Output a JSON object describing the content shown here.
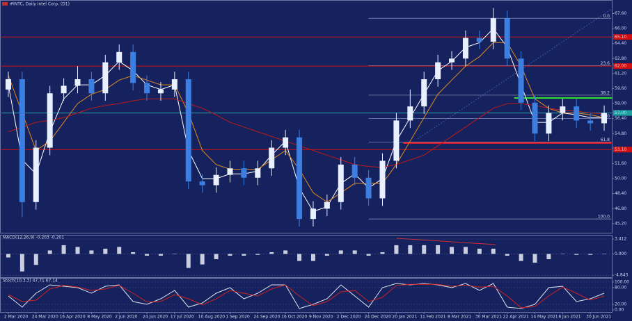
{
  "chart_data": [
    {
      "type": "candlestick",
      "title": "#INTC, Daily Intel Corp. (D1)",
      "categories": [
        "2 Mar 2020",
        null,
        "24 Mar 2020",
        null,
        "16 Apr 2020",
        null,
        "8 May 2020",
        null,
        "2 Jun 2020",
        null,
        "24 Jun 2020",
        null,
        "17 Jul 2020",
        null,
        "10 Aug 2020",
        null,
        "1 Sep 2020",
        null,
        "24 Sep 2020",
        null,
        "16 Oct 2020",
        null,
        "9 Nov 2020",
        null,
        "2 Dec 2020",
        null,
        "24 Dec 2020",
        null,
        "20 Jan 2021",
        null,
        "11 Feb 2021",
        null,
        "8 Mar 2021",
        null,
        "30 Mar 2021",
        null,
        "22 Apr 2021",
        null,
        "14 May 2021",
        null,
        "8 Jun 2021",
        null,
        "30 Jun 2021",
        null
      ],
      "candles": [
        [
          59.5,
          61.4,
          58.7,
          60.6
        ],
        [
          60.6,
          61.4,
          45.9,
          47.5
        ],
        [
          47.5,
          54.1,
          46.7,
          53.3
        ],
        [
          53.3,
          59.9,
          52.5,
          59.1
        ],
        [
          59.1,
          60.7,
          58.3,
          59.9
        ],
        [
          59.9,
          62.0,
          59.1,
          60.6
        ],
        [
          60.6,
          61.4,
          58.3,
          59.1
        ],
        [
          59.1,
          63.2,
          58.3,
          62.4
        ],
        [
          62.4,
          64.3,
          61.6,
          63.5
        ],
        [
          63.5,
          64.3,
          59.4,
          60.2
        ],
        [
          60.2,
          61.0,
          58.3,
          59.1
        ],
        [
          59.1,
          60.3,
          58.3,
          59.5
        ],
        [
          59.5,
          61.4,
          58.7,
          60.6
        ],
        [
          60.6,
          61.4,
          48.9,
          49.7
        ],
        [
          49.7,
          50.5,
          48.5,
          49.3
        ],
        [
          49.3,
          51.2,
          48.5,
          50.4
        ],
        [
          50.4,
          51.9,
          49.6,
          51.1
        ],
        [
          51.1,
          51.9,
          49.3,
          50.1
        ],
        [
          50.1,
          51.9,
          49.3,
          51.1
        ],
        [
          51.1,
          54.1,
          50.3,
          53.3
        ],
        [
          53.3,
          55.2,
          52.5,
          54.4
        ],
        [
          54.4,
          55.2,
          44.9,
          45.7
        ],
        [
          45.7,
          47.6,
          44.9,
          46.8
        ],
        [
          46.8,
          48.3,
          46.0,
          47.5
        ],
        [
          47.5,
          52.3,
          46.7,
          51.5
        ],
        [
          51.5,
          52.3,
          49.3,
          50.1
        ],
        [
          50.1,
          50.9,
          47.1,
          47.9
        ],
        [
          47.9,
          52.7,
          47.1,
          51.9
        ],
        [
          51.9,
          57.0,
          51.1,
          56.2
        ],
        [
          56.2,
          59.5,
          55.4,
          57.7
        ],
        [
          57.7,
          61.4,
          56.9,
          60.6
        ],
        [
          60.6,
          63.2,
          59.8,
          62.4
        ],
        [
          62.4,
          63.6,
          61.6,
          62.8
        ],
        [
          62.8,
          65.8,
          62.0,
          65.0
        ],
        [
          65.0,
          65.8,
          63.8,
          64.6
        ],
        [
          64.6,
          68.2,
          63.8,
          67.1
        ],
        [
          67.1,
          67.9,
          62.0,
          62.8
        ],
        [
          62.8,
          63.6,
          57.3,
          58.1
        ],
        [
          58.1,
          58.9,
          54.0,
          54.8
        ],
        [
          54.8,
          57.8,
          54.0,
          57.0
        ],
        [
          57.0,
          58.5,
          56.2,
          57.7
        ],
        [
          57.7,
          58.5,
          55.4,
          56.2
        ],
        [
          56.2,
          57.0,
          55.1,
          55.9
        ],
        [
          55.9,
          57.8,
          55.1,
          57.0
        ]
      ],
      "up_color": "#e8f0ff",
      "down_color": "#3d7fe0",
      "series": [
        {
          "color": "#ffffff",
          "values": [
            60.0,
            52,
            50.5,
            55,
            58.5,
            60,
            60,
            61,
            62.5,
            61.5,
            60,
            59.5,
            60,
            53,
            50,
            50,
            50.5,
            50.5,
            50.8,
            52.5,
            54,
            49,
            46.5,
            47,
            49.5,
            50.5,
            49,
            50,
            54,
            56.5,
            59,
            61.5,
            62.5,
            64,
            64.5,
            66,
            64,
            60,
            56,
            56,
            57,
            56.8,
            56.5,
            56.5
          ]
        },
        {
          "color": "#e08a1e",
          "values": [
            61,
            57,
            53,
            54,
            56,
            58,
            59,
            59.5,
            60.5,
            61,
            60.5,
            60,
            60,
            57,
            53,
            51.5,
            51,
            51,
            51,
            52,
            53,
            51,
            48.5,
            47.5,
            48.5,
            49.5,
            49.5,
            49.5,
            51.5,
            54,
            56.5,
            59,
            60.5,
            62,
            63,
            64.5,
            64.5,
            62,
            58.5,
            57.5,
            57,
            57,
            56.8,
            56.5
          ]
        },
        {
          "color": "#c01818",
          "values": [
            55,
            55.5,
            56,
            56.2,
            56.5,
            57,
            57.5,
            57.8,
            58,
            58.3,
            58.5,
            58.5,
            58.5,
            58,
            57.5,
            56.8,
            56,
            55.5,
            55,
            54.5,
            54,
            53.5,
            53,
            52.5,
            52,
            51.5,
            51.3,
            51.2,
            51.5,
            52,
            52.5,
            53.5,
            54.5,
            55.5,
            56.5,
            57.5,
            58,
            58,
            57.8,
            57.5,
            57.3,
            57.2,
            57,
            56.9
          ]
        }
      ],
      "hlines": [
        {
          "value": 65.1,
          "label": "65.10",
          "color": "#d01010",
          "start": 0
        },
        {
          "value": 62.0,
          "label": "62.00",
          "color": "#d01010",
          "start": 0
        },
        {
          "value": 53.1,
          "label": "53.10",
          "color": "#d01010",
          "start": 0
        },
        {
          "value": 53.8,
          "color": "#ff2020",
          "start": 29
        },
        {
          "value": 58.6,
          "color": "#30e030",
          "start": 37
        },
        {
          "value": 57.0,
          "label": "57.00",
          "color": "#1fa0a0",
          "start": 0
        }
      ],
      "fib": {
        "start": 26,
        "color": "#9aa3c8",
        "levels": [
          {
            "value": 67.1,
            "label": "0.0"
          },
          {
            "value": 62.05,
            "label": "23.6"
          },
          {
            "value": 58.9,
            "label": "38.2"
          },
          {
            "value": 56.4,
            "label": "50.0"
          },
          {
            "value": 53.9,
            "label": "61.8"
          },
          {
            "value": 45.7,
            "label": "100.0"
          }
        ]
      },
      "ylim": [
        44.6,
        68.6
      ],
      "yticks": [
        {
          "value": 67.6,
          "label": "67.60"
        },
        {
          "value": 66.0,
          "label": "66.00"
        },
        {
          "value": 64.4,
          "label": "64.40"
        },
        {
          "value": 62.8,
          "label": "62.80"
        },
        {
          "value": 61.2,
          "label": "61.20"
        },
        {
          "value": 59.6,
          "label": "59.60"
        },
        {
          "value": 58.0,
          "label": "58.00"
        },
        {
          "value": 56.4,
          "label": "56.40"
        },
        {
          "value": 54.8,
          "label": "54.80"
        },
        {
          "value": 53.2,
          "label": "53.20"
        },
        {
          "value": 51.6,
          "label": "51.60"
        },
        {
          "value": 50.0,
          "label": "50.00"
        },
        {
          "value": 48.4,
          "label": "48.40"
        },
        {
          "value": 46.8,
          "label": "46.80"
        },
        {
          "value": 45.2,
          "label": "45.20"
        }
      ],
      "grid": false
    },
    {
      "type": "bar",
      "title": "MACD(12,26,9) -0.203 -0.201",
      "color": "#c8cde0",
      "values": [
        -0.8,
        -4,
        -2.5,
        0.8,
        2,
        1.6,
        0.8,
        1.2,
        1.6,
        0.4,
        -0.4,
        -0.4,
        0,
        -3.2,
        -2.4,
        -1.2,
        -0.4,
        -0.4,
        -0.2,
        0.4,
        0.8,
        -1.6,
        -1.6,
        -0.4,
        0.8,
        0.8,
        -0.4,
        0.4,
        2,
        2,
        2,
        2,
        1.6,
        1.6,
        1.2,
        1.2,
        -0.4,
        -1.6,
        -2,
        -1.2,
        0,
        -0.2,
        -0.2,
        0
      ],
      "ylim": [
        -4.843,
        3.412
      ],
      "yticks": [
        {
          "value": 3.412,
          "label": "3.412"
        },
        {
          "value": 0,
          "label": "0.000"
        },
        {
          "value": -4.843,
          "label": "-4.843"
        }
      ],
      "grid": true
    },
    {
      "type": "line",
      "title": "Stoch(10,3,3) 47.71 67.14",
      "series": [
        {
          "color": "#e0e4f0",
          "values": [
            50,
            10,
            60,
            90,
            85,
            80,
            60,
            85,
            90,
            30,
            20,
            40,
            70,
            10,
            25,
            60,
            80,
            40,
            60,
            90,
            90,
            5,
            20,
            40,
            90,
            50,
            10,
            80,
            95,
            90,
            95,
            90,
            80,
            95,
            70,
            95,
            10,
            5,
            20,
            80,
            85,
            30,
            40,
            60
          ]
        },
        {
          "color": "#d02020",
          "values": [
            55,
            30,
            35,
            75,
            88,
            82,
            70,
            75,
            88,
            60,
            28,
            30,
            55,
            40,
            18,
            40,
            70,
            60,
            50,
            75,
            90,
            50,
            15,
            30,
            65,
            70,
            30,
            45,
            88,
            92,
            92,
            92,
            85,
            88,
            82,
            85,
            50,
            8,
            12,
            50,
            82,
            60,
            35,
            50
          ]
        }
      ],
      "ylim": [
        0,
        100
      ],
      "yticks": [
        {
          "value": 100,
          "label": "100.00"
        },
        {
          "value": 80,
          "label": "80.00"
        },
        {
          "value": 20,
          "label": "20.00"
        },
        {
          "value": 0,
          "label": "0.00"
        }
      ],
      "grid": true
    }
  ]
}
